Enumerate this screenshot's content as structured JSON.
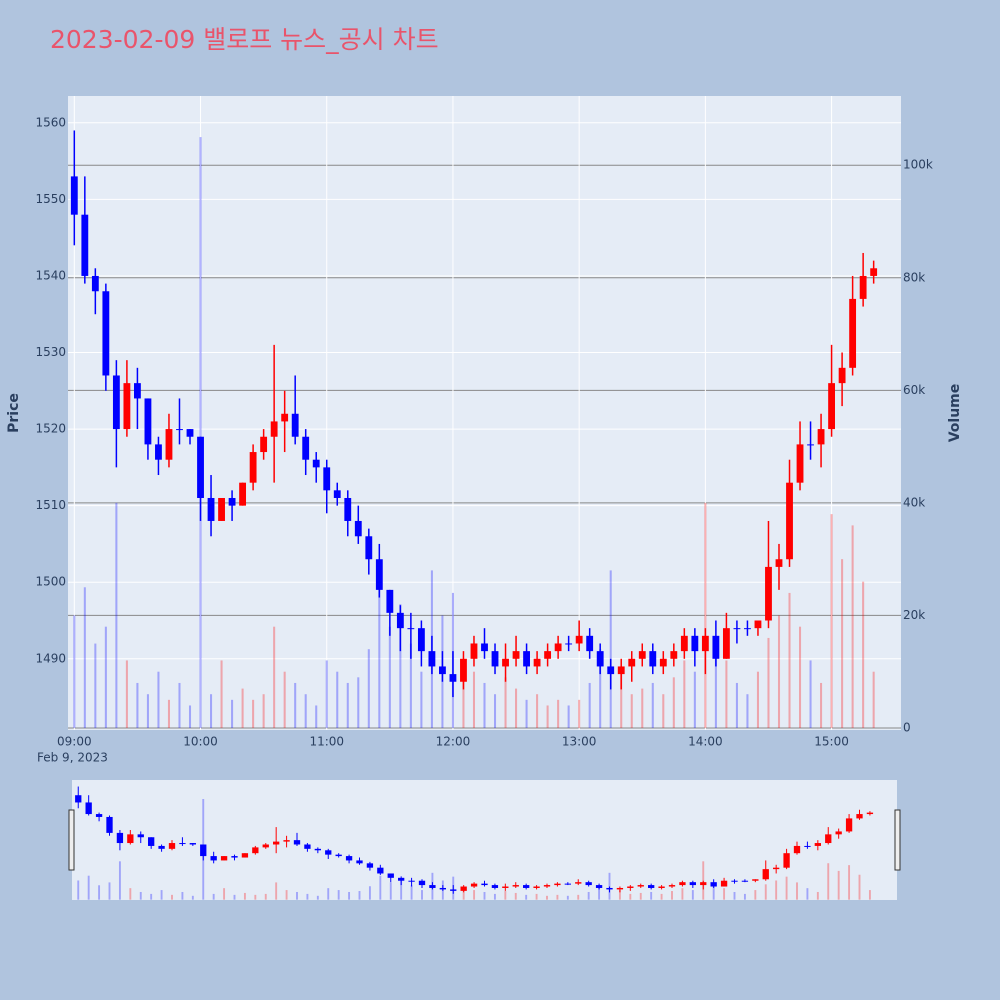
{
  "chart_data": {
    "type": "candlestick",
    "title": "2023-02-09 밸로프 뉴스_공시 차트",
    "y_title": "Price",
    "y2_title": "Volume",
    "x_date_label": "Feb 9, 2023",
    "increasing_color": "#ff0000",
    "decreasing_color": "#0000ff",
    "x": [
      "09:00",
      "09:05",
      "09:10",
      "09:15",
      "09:20",
      "09:25",
      "09:30",
      "09:35",
      "09:40",
      "09:45",
      "09:50",
      "09:55",
      "10:00",
      "10:05",
      "10:10",
      "10:15",
      "10:20",
      "10:25",
      "10:30",
      "10:35",
      "10:40",
      "10:45",
      "10:50",
      "10:55",
      "11:00",
      "11:05",
      "11:10",
      "11:15",
      "11:20",
      "11:25",
      "11:30",
      "11:35",
      "11:40",
      "11:45",
      "11:50",
      "11:55",
      "12:00",
      "12:05",
      "12:10",
      "12:15",
      "12:20",
      "12:25",
      "12:30",
      "12:35",
      "12:40",
      "12:45",
      "12:50",
      "12:55",
      "13:00",
      "13:05",
      "13:10",
      "13:15",
      "13:20",
      "13:25",
      "13:30",
      "13:35",
      "13:40",
      "13:45",
      "13:50",
      "13:55",
      "14:00",
      "14:05",
      "14:10",
      "14:15",
      "14:20",
      "14:25",
      "14:30",
      "14:35",
      "14:40",
      "14:45",
      "14:50",
      "14:55",
      "15:00",
      "15:05",
      "15:10",
      "15:15",
      "15:20"
    ],
    "open": [
      1553,
      1548,
      1540,
      1538,
      1527,
      1520,
      1526,
      1524,
      1518,
      1516,
      1520,
      1520,
      1519,
      1511,
      1508,
      1511,
      1510,
      1513,
      1517,
      1519,
      1521,
      1522,
      1519,
      1516,
      1515,
      1512,
      1511,
      1508,
      1506,
      1503,
      1499,
      1496,
      1494,
      1494,
      1491,
      1489,
      1488,
      1487,
      1490,
      1492,
      1491,
      1489,
      1490,
      1491,
      1489,
      1490,
      1491,
      1492,
      1492,
      1493,
      1491,
      1489,
      1488,
      1489,
      1490,
      1491,
      1489,
      1490,
      1491,
      1493,
      1491,
      1493,
      1490,
      1494,
      1494,
      1494,
      1495,
      1502,
      1503,
      1513,
      1518,
      1518,
      1520,
      1526,
      1528,
      1537,
      1540
    ],
    "high": [
      1559,
      1553,
      1541,
      1539,
      1529,
      1529,
      1528,
      1524,
      1519,
      1522,
      1524,
      1520,
      1519,
      1514,
      1511,
      1512,
      1513,
      1518,
      1520,
      1531,
      1525,
      1527,
      1520,
      1517,
      1516,
      1513,
      1512,
      1510,
      1507,
      1505,
      1499,
      1497,
      1496,
      1495,
      1493,
      1491,
      1491,
      1491,
      1493,
      1494,
      1492,
      1492,
      1493,
      1492,
      1491,
      1492,
      1493,
      1493,
      1495,
      1494,
      1492,
      1490,
      1490,
      1491,
      1492,
      1492,
      1491,
      1492,
      1494,
      1494,
      1494,
      1495,
      1496,
      1495,
      1495,
      1495,
      1508,
      1505,
      1516,
      1521,
      1521,
      1522,
      1531,
      1530,
      1540,
      1543,
      1542
    ],
    "low": [
      1544,
      1539,
      1535,
      1525,
      1515,
      1519,
      1520,
      1516,
      1514,
      1515,
      1518,
      1518,
      1508,
      1506,
      1508,
      1508,
      1510,
      1512,
      1516,
      1513,
      1517,
      1518,
      1514,
      1513,
      1509,
      1510,
      1506,
      1505,
      1501,
      1498,
      1493,
      1491,
      1490,
      1489,
      1488,
      1487,
      1485,
      1486,
      1489,
      1490,
      1488,
      1487,
      1489,
      1488,
      1488,
      1489,
      1490,
      1491,
      1491,
      1490,
      1488,
      1486,
      1486,
      1487,
      1489,
      1488,
      1488,
      1489,
      1490,
      1489,
      1488,
      1489,
      1490,
      1492,
      1493,
      1493,
      1494,
      1499,
      1502,
      1512,
      1516,
      1515,
      1519,
      1523,
      1527,
      1536,
      1539
    ],
    "close": [
      1548,
      1540,
      1538,
      1527,
      1520,
      1526,
      1524,
      1518,
      1516,
      1520,
      1520,
      1519,
      1511,
      1508,
      1511,
      1510,
      1513,
      1517,
      1519,
      1521,
      1522,
      1519,
      1516,
      1515,
      1512,
      1511,
      1508,
      1506,
      1503,
      1499,
      1496,
      1494,
      1494,
      1491,
      1489,
      1488,
      1487,
      1490,
      1492,
      1491,
      1489,
      1490,
      1491,
      1489,
      1490,
      1491,
      1492,
      1492,
      1493,
      1491,
      1489,
      1488,
      1489,
      1490,
      1491,
      1489,
      1490,
      1491,
      1493,
      1491,
      1493,
      1490,
      1494,
      1494,
      1494,
      1495,
      1502,
      1503,
      1513,
      1518,
      1518,
      1520,
      1526,
      1528,
      1537,
      1540,
      1541
    ],
    "volume": [
      20000,
      25000,
      15000,
      18000,
      40000,
      12000,
      8000,
      6000,
      10000,
      5000,
      8000,
      4000,
      105000,
      6000,
      12000,
      5000,
      7000,
      5000,
      6000,
      18000,
      10000,
      8000,
      6000,
      4000,
      12000,
      10000,
      8000,
      9000,
      14000,
      25000,
      18000,
      22000,
      15000,
      10000,
      28000,
      20000,
      24000,
      12000,
      10000,
      8000,
      6000,
      9000,
      7000,
      5000,
      6000,
      4000,
      5000,
      4000,
      5000,
      8000,
      14000,
      28000,
      10000,
      6000,
      7000,
      8000,
      6000,
      9000,
      12000,
      10000,
      40000,
      14000,
      12000,
      8000,
      6000,
      10000,
      16000,
      20000,
      24000,
      18000,
      12000,
      8000,
      38000,
      30000,
      36000,
      26000,
      10000
    ],
    "xlim": [
      "08:57",
      "15:33"
    ],
    "xticks": [
      "09:00",
      "10:00",
      "11:00",
      "12:00",
      "13:00",
      "14:00",
      "15:00"
    ],
    "ylim": [
      1480.7,
      1563.5
    ],
    "yticks": [
      1490,
      1500,
      1510,
      1520,
      1530,
      1540,
      1550,
      1560
    ],
    "y2lim": [
      -360,
      112300
    ],
    "y2ticks": [
      0,
      {
        "value": 20000,
        "label": "20k"
      },
      {
        "value": 40000,
        "label": "40k"
      },
      {
        "value": 60000,
        "label": "60k"
      },
      {
        "value": 80000,
        "label": "80k"
      },
      {
        "value": 100000,
        "label": "100k"
      }
    ],
    "grid": true,
    "rangeslider": true
  }
}
